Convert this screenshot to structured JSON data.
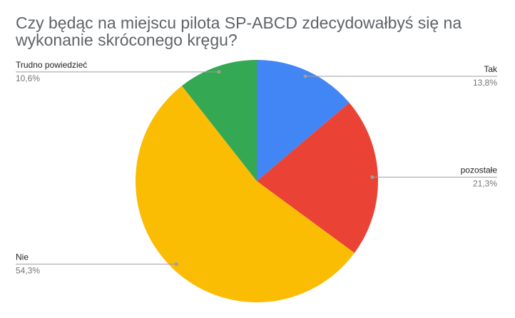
{
  "chart_data": {
    "type": "pie",
    "title": "Czy będąc na miejscu pilota SP-ABCD zdecydowałbyś się na wykonanie skróconego kręgu?",
    "categories": [
      "Tak",
      "pozostałe",
      "Nie",
      "Trudno powiedzieć"
    ],
    "values": [
      13.8,
      21.3,
      54.3,
      10.6
    ],
    "value_labels": [
      "13,8%",
      "21,3%",
      "54,3%",
      "10,6%"
    ],
    "colors": [
      "#4285f4",
      "#ea4335",
      "#fbbc04",
      "#34a853"
    ]
  }
}
